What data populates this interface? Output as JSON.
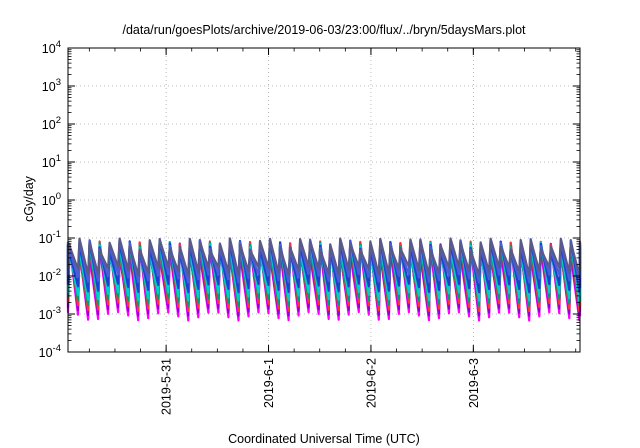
{
  "chart_data": {
    "type": "line",
    "title": "/data/run/goesPlots/archive/2019-06-03/23:00/flux/../bryn/5daysMars.plot",
    "xlabel": "Coordinated Universal Time (UTC)",
    "ylabel": "cGy/day",
    "yscale": "log",
    "ylim": [
      0.0001,
      10000
    ],
    "xlim": [
      "2019-05-30T01:00",
      "2019-06-04T01:00"
    ],
    "x_ticks": [
      {
        "label": "2019-5-31",
        "value": "2019-05-31T00:00"
      },
      {
        "label": "2019-6-1",
        "value": "2019-06-01T00:00"
      },
      {
        "label": "2019-6-2",
        "value": "2019-06-02T00:00"
      },
      {
        "label": "2019-6-3",
        "value": "2019-06-03T00:00"
      }
    ],
    "y_ticks": [
      {
        "base": "10",
        "exp": "-4",
        "value": 0.0001
      },
      {
        "base": "10",
        "exp": "-3",
        "value": 0.001
      },
      {
        "base": "10",
        "exp": "-2",
        "value": 0.01
      },
      {
        "base": "10",
        "exp": "-1",
        "value": 0.1
      },
      {
        "base": "10",
        "exp": "0",
        "value": 1
      },
      {
        "base": "10",
        "exp": "1",
        "value": 10
      },
      {
        "base": "10",
        "exp": "2",
        "value": 100
      },
      {
        "base": "10",
        "exp": "3",
        "value": 1000
      },
      {
        "base": "10",
        "exp": "4",
        "value": 10000
      }
    ],
    "grid": true,
    "legend": "none",
    "pattern": {
      "description": "sawtooth dose rate: rises to a peak then decays over each cycle",
      "period_hours": 2.35,
      "series": [
        {
          "color": "#ff00ff",
          "peak": 0.05,
          "trough": 0.0009
        },
        {
          "color": "#9400d3",
          "peak": 0.055,
          "trough": 0.0012
        },
        {
          "color": "#ff3333",
          "peak": 0.06,
          "trough": 0.0016
        },
        {
          "color": "#009e73",
          "peak": 0.058,
          "trough": 0.0022
        },
        {
          "color": "#00cfcf",
          "peak": 0.06,
          "trough": 0.003
        },
        {
          "color": "#1e40d0",
          "peak": 0.065,
          "trough": 0.005
        },
        {
          "color": "#4a5dd8",
          "peak": 0.07,
          "trough": 0.009
        },
        {
          "color": "#5a5a8a",
          "peak": 0.072,
          "trough": 0.014
        }
      ]
    }
  }
}
